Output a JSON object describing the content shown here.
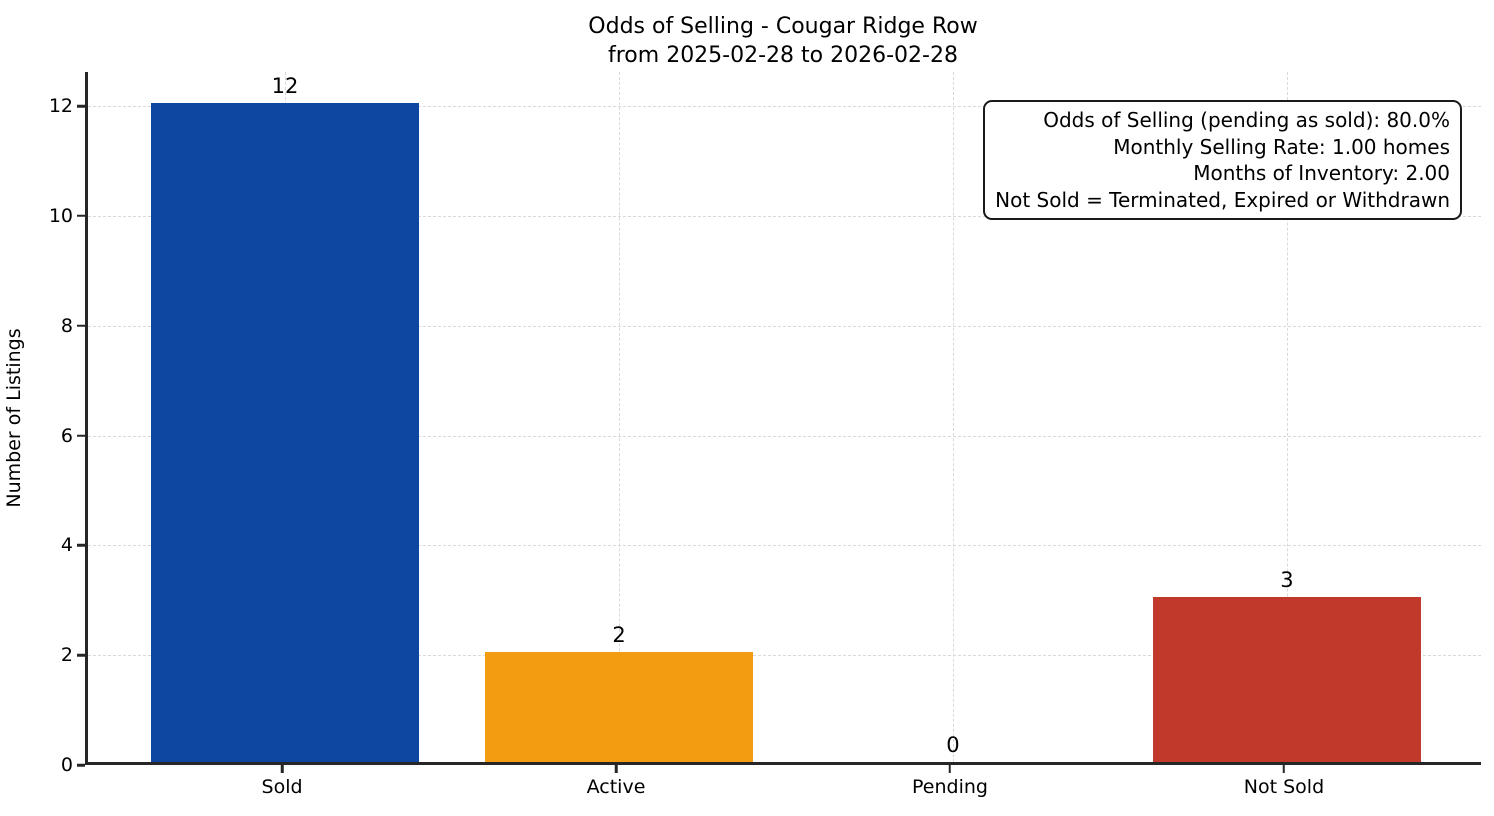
{
  "chart_data": {
    "type": "bar",
    "title": "Odds of Selling - Cougar Ridge Row",
    "subtitle": "from 2025-02-28 to 2026-02-28",
    "categories": [
      "Sold",
      "Active",
      "Pending",
      "Not Sold"
    ],
    "values": [
      12,
      2,
      0,
      3
    ],
    "value_labels": [
      "12",
      "2",
      "0",
      "3"
    ],
    "bar_colors": [
      "#0d47a1",
      "#f39c12",
      "#808080",
      "#c0392b"
    ],
    "xlabel": "",
    "ylabel": "Number of Listings",
    "ylim": [
      0,
      12.62
    ],
    "yticks": [
      0,
      2,
      4,
      6,
      8,
      10,
      12
    ],
    "grid": true,
    "grid_style": "dashed",
    "legend": null,
    "annotation_box": {
      "position": "top-right",
      "lines": [
        "Odds of Selling (pending as sold): 80.0%",
        "Monthly Selling Rate: 1.00 homes",
        "Months of Inventory: 2.00",
        "Not Sold = Terminated, Expired or Withdrawn"
      ]
    }
  },
  "colors": {
    "background": "#ffffff",
    "spine": "#262626",
    "grid": "#d9d9d9",
    "text": "#000000",
    "annotation_border": "#1a1a1a",
    "sold_bar": "#0d47a1",
    "active_bar": "#f39c12",
    "not_sold_bar": "#c0392b"
  }
}
